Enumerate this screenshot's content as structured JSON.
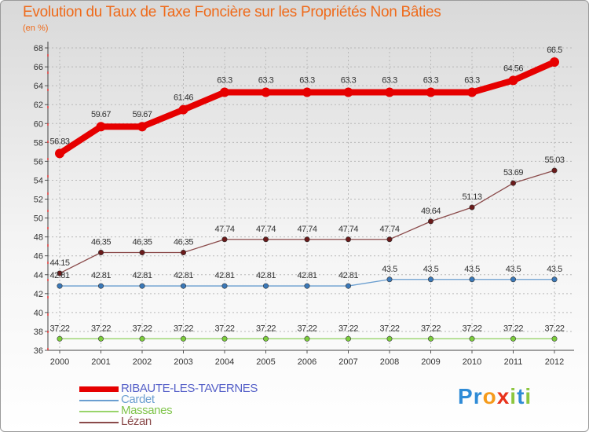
{
  "header": {
    "title": "Evolution du Taux de Taxe Foncière sur les Propriétés Non Bâties",
    "unit": "(en %)"
  },
  "logo": {
    "text": "Proxiti",
    "letters": [
      "P",
      "r",
      "o",
      "x",
      "i",
      "t",
      "i"
    ],
    "colors": [
      "#2f8bd6",
      "#2f8bd6",
      "#f59b1c",
      "#e8321b",
      "#8dc63f",
      "#2f8bd6",
      "#8dc63f"
    ]
  },
  "chart_data": {
    "type": "line",
    "title": "Evolution du Taux de Taxe Foncière sur les Propriétés Non Bâties",
    "ylabel": "(en %)",
    "xlabel": "",
    "ylim": [
      36,
      68
    ],
    "yticks": [
      36,
      38,
      40,
      42,
      44,
      46,
      48,
      50,
      52,
      54,
      56,
      58,
      60,
      62,
      64,
      66,
      68
    ],
    "categories": [
      "2000",
      "2001",
      "2002",
      "2003",
      "2004",
      "2005",
      "2006",
      "2007",
      "2008",
      "2009",
      "2010",
      "2011",
      "2012"
    ],
    "legend_position": "bottom-left",
    "series": [
      {
        "name": "RIBAUTE-LES-TAVERNES",
        "color": "#e60000",
        "legend_color": "#5560c8",
        "marker": "#e60000",
        "values": [
          56.83,
          59.67,
          59.67,
          61.46,
          63.3,
          63.3,
          63.3,
          63.3,
          63.3,
          63.3,
          63.3,
          64.56,
          66.5
        ],
        "labels": [
          "56.83",
          "59.67",
          "59.67",
          "61.46",
          "63.3",
          "63.3",
          "63.3",
          "63.3",
          "63.3",
          "63.3",
          "63.3",
          "64.56",
          "66.5"
        ]
      },
      {
        "name": "Cardet",
        "color": "#6a9ed0",
        "legend_color": "#6a9ed0",
        "marker": "#3a78b8",
        "values": [
          42.81,
          42.81,
          42.81,
          42.81,
          42.81,
          42.81,
          42.81,
          42.81,
          43.5,
          43.5,
          43.5,
          43.5,
          43.5
        ],
        "labels": [
          "42.81",
          "42.81",
          "42.81",
          "42.81",
          "42.81",
          "42.81",
          "42.81",
          "42.81",
          "43.5",
          "43.5",
          "43.5",
          "43.5",
          "43.5"
        ]
      },
      {
        "name": "Massanes",
        "color": "#98d46a",
        "legend_color": "#7fc44a",
        "marker": "#7ccd3c",
        "values": [
          37.22,
          37.22,
          37.22,
          37.22,
          37.22,
          37.22,
          37.22,
          37.22,
          37.22,
          37.22,
          37.22,
          37.22,
          37.22
        ],
        "labels": [
          "37.22",
          "37.22",
          "37.22",
          "37.22",
          "37.22",
          "37.22",
          "37.22",
          "37.22",
          "37.22",
          "37.22",
          "37.22",
          "37.22",
          "37.22"
        ]
      },
      {
        "name": "Lézan",
        "color": "#8a4a4a",
        "legend_color": "#8a4a4a",
        "marker": "#6a1a1a",
        "values": [
          44.15,
          46.35,
          46.35,
          46.35,
          47.74,
          47.74,
          47.74,
          47.74,
          47.74,
          49.64,
          51.13,
          53.69,
          55.03
        ],
        "labels": [
          "44.15",
          "46.35",
          "46.35",
          "46.35",
          "47.74",
          "47.74",
          "47.74",
          "47.74",
          "47.74",
          "49.64",
          "51.13",
          "53.69",
          "55.03"
        ]
      }
    ]
  }
}
